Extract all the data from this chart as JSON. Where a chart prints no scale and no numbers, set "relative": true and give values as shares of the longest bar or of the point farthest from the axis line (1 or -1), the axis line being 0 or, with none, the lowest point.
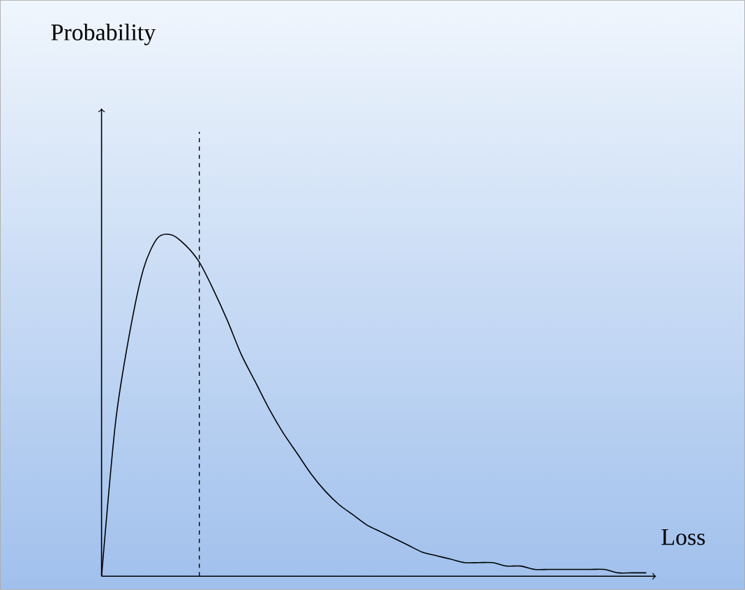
{
  "chart_data": {
    "type": "line",
    "relative": true,
    "xlabel": "Loss",
    "annotations": [
      "Probability"
    ],
    "color": "#000000",
    "marker": "none",
    "line_style": "solid",
    "categories": [
      null,
      null,
      null,
      null,
      null,
      null,
      null,
      null,
      null,
      null,
      null,
      null,
      null,
      null,
      null,
      null,
      null,
      null,
      null,
      null,
      null,
      null,
      null,
      null,
      null,
      null,
      null,
      null,
      null,
      null,
      null,
      null,
      null,
      null,
      null,
      null,
      null,
      null,
      null,
      null
    ],
    "values": [
      0,
      0.45,
      0.71,
      0.9,
      0.99,
      1,
      0.97,
      0.92,
      0.84,
      0.75,
      0.65,
      0.57,
      0.49,
      0.42,
      0.36,
      0.3,
      0.25,
      0.21,
      0.18,
      0.15,
      0.13,
      0.11,
      0.09,
      0.07,
      0.06,
      0.05,
      0.04,
      0.04,
      0.04,
      0.03,
      0.03,
      0.02,
      0.02,
      0.02,
      0.02,
      0.02,
      0.02,
      0.01,
      0.01,
      0.01
    ]
  }
}
